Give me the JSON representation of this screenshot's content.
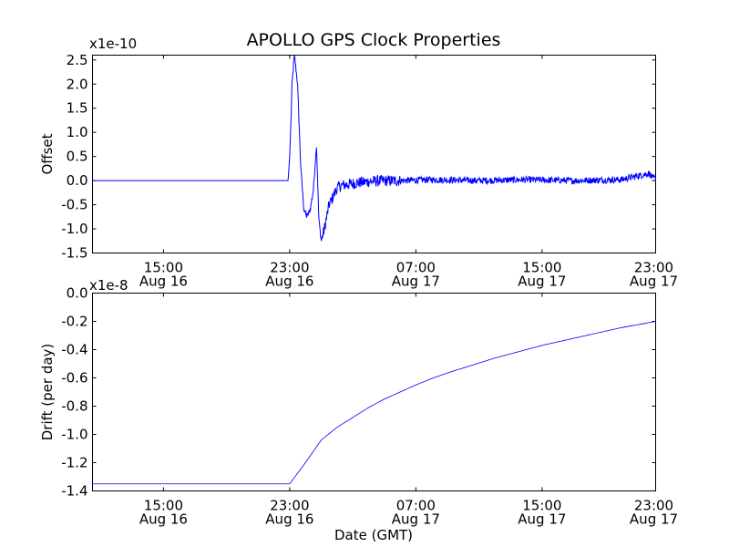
{
  "chart_data": [
    {
      "type": "line",
      "title": "APOLLO GPS Clock Properties",
      "ylabel": "Offset",
      "xlabel": "",
      "y_multiplier": "x1e-10",
      "ylim": [
        -1.5,
        2.6
      ],
      "yticks": [
        "-1.5",
        "-1.0",
        "-0.5",
        "0.0",
        "0.5",
        "1.0",
        "1.5",
        "2.0",
        "2.5"
      ],
      "yticks_values": [
        -1.5,
        -1.0,
        -0.5,
        0.0,
        0.5,
        1.0,
        1.5,
        2.0,
        2.5
      ],
      "xlim_hours": [
        10.5,
        46.2
      ],
      "xticks_hours": [
        15,
        23,
        31,
        39,
        47
      ],
      "xticks": [
        {
          "time": "15:00",
          "date": "Aug 16"
        },
        {
          "time": "23:00",
          "date": "Aug 16"
        },
        {
          "time": "07:00",
          "date": "Aug 17"
        },
        {
          "time": "15:00",
          "date": "Aug 17"
        },
        {
          "time": "23:00",
          "date": "Aug 17"
        }
      ],
      "color": "#0000ff",
      "series": [
        {
          "name": "Offset",
          "x": [
            10.5,
            22.9,
            23.0,
            23.1,
            23.15,
            23.3,
            23.5,
            23.7,
            23.9,
            24.1,
            24.3,
            24.5,
            24.7,
            24.85,
            25.0,
            25.2,
            25.5,
            25.8,
            26.0,
            26.3,
            26.7,
            27.2,
            28.0,
            29.0,
            30.0,
            32.0,
            35.0,
            38.0,
            41.0,
            44.0,
            45.8,
            46.0,
            46.2
          ],
          "y": [
            0.0,
            0.0,
            0.5,
            1.4,
            2.0,
            2.62,
            2.0,
            0.3,
            -0.6,
            -0.75,
            -0.6,
            -0.2,
            0.75,
            -0.8,
            -1.25,
            -1.0,
            -0.5,
            -0.3,
            -0.15,
            -0.1,
            -0.08,
            -0.05,
            -0.02,
            0.0,
            0.0,
            0.02,
            0.0,
            0.02,
            0.0,
            0.02,
            0.15,
            0.05,
            0.05
          ],
          "noise": [
            {
              "x_from": 25.0,
              "x_to": 30.0,
              "amplitude": 0.12
            },
            {
              "x_from": 30.0,
              "x_to": 46.2,
              "amplitude": 0.07
            }
          ]
        }
      ]
    },
    {
      "type": "line",
      "title": "",
      "ylabel": "Drift (per day)",
      "xlabel": "Date (GMT)",
      "y_multiplier": "x1e-8",
      "ylim": [
        -1.4,
        0.0
      ],
      "yticks": [
        "-1.4",
        "-1.2",
        "-1.0",
        "-0.8",
        "-0.6",
        "-0.4",
        "-0.2",
        "0.0"
      ],
      "yticks_values": [
        -1.4,
        -1.2,
        -1.0,
        -0.8,
        -0.6,
        -0.4,
        -0.2,
        0.0
      ],
      "xlim_hours": [
        10.5,
        46.2
      ],
      "xticks_hours": [
        15,
        23,
        31,
        39,
        47
      ],
      "xticks": [
        {
          "time": "15:00",
          "date": "Aug 16"
        },
        {
          "time": "23:00",
          "date": "Aug 16"
        },
        {
          "time": "07:00",
          "date": "Aug 17"
        },
        {
          "time": "15:00",
          "date": "Aug 17"
        },
        {
          "time": "23:00",
          "date": "Aug 17"
        }
      ],
      "color": "#0000ff",
      "series": [
        {
          "name": "Drift",
          "x": [
            10.5,
            23.0,
            24.0,
            25.0,
            26.0,
            27.0,
            28.0,
            29.0,
            30.0,
            31.0,
            32.0,
            33.0,
            34.0,
            35.0,
            36.0,
            37.0,
            38.0,
            39.0,
            40.0,
            41.0,
            42.0,
            43.0,
            44.0,
            45.0,
            46.2
          ],
          "y": [
            -1.35,
            -1.35,
            -1.2,
            -1.04,
            -0.95,
            -0.88,
            -0.81,
            -0.75,
            -0.7,
            -0.65,
            -0.605,
            -0.565,
            -0.53,
            -0.495,
            -0.46,
            -0.43,
            -0.4,
            -0.37,
            -0.345,
            -0.32,
            -0.295,
            -0.27,
            -0.245,
            -0.225,
            -0.2
          ]
        }
      ]
    }
  ]
}
